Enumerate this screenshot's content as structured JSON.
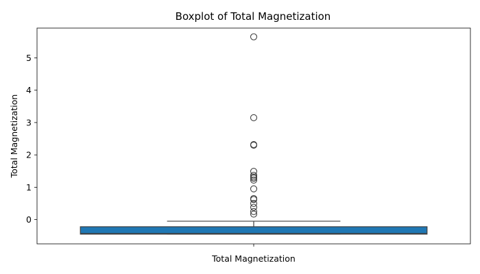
{
  "chart_data": {
    "type": "boxplot",
    "title": "Boxplot of Total Magnetization",
    "xlabel": "Total Magnetization",
    "ylabel": "Total Magnetization",
    "categories": [
      "Total Magnetization"
    ],
    "y_ticks": [
      0,
      1,
      2,
      3,
      4,
      5
    ],
    "ylim": [
      -0.75,
      5.92
    ],
    "grid": false,
    "box": {
      "q1": -0.45,
      "median": -0.43,
      "q3": -0.22,
      "whisker_low": -0.45,
      "whisker_high": -0.05
    },
    "outliers": [
      5.65,
      3.15,
      2.32,
      2.3,
      1.49,
      1.37,
      1.32,
      1.28,
      1.22,
      0.95,
      0.65,
      0.62,
      0.5,
      0.38,
      0.25,
      0.17
    ],
    "colors": {
      "box_fill": "#1f77b4",
      "line": "#3f3f3f",
      "axis": "#000000"
    }
  }
}
